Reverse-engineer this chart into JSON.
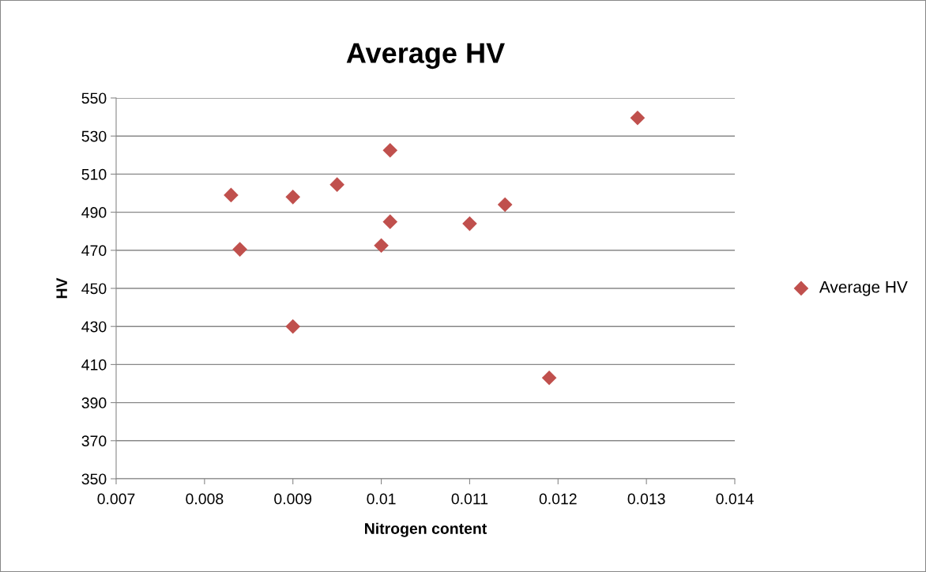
{
  "chart_data": {
    "type": "scatter",
    "title": "Average HV",
    "xlabel": "Nitrogen content",
    "ylabel": "HV",
    "series": [
      {
        "name": "Average HV",
        "color": "#c0504d",
        "x": [
          0.0083,
          0.0084,
          0.009,
          0.009,
          0.0095,
          0.01,
          0.0101,
          0.0101,
          0.011,
          0.0114,
          0.0119,
          0.0129
        ],
        "values": [
          499,
          470.5,
          498,
          430,
          504.5,
          472.5,
          522.5,
          485,
          484,
          494,
          403,
          539.5
        ]
      }
    ],
    "xlim": [
      0.007,
      0.014
    ],
    "xticks": [
      0.007,
      0.008,
      0.009,
      0.01,
      0.011,
      0.012,
      0.013,
      0.014
    ],
    "ylim": [
      350,
      550
    ],
    "yticks": [
      350,
      370,
      390,
      410,
      430,
      450,
      470,
      490,
      510,
      530,
      550
    ],
    "grid": "y",
    "legend": "right",
    "marker": "diamond"
  }
}
